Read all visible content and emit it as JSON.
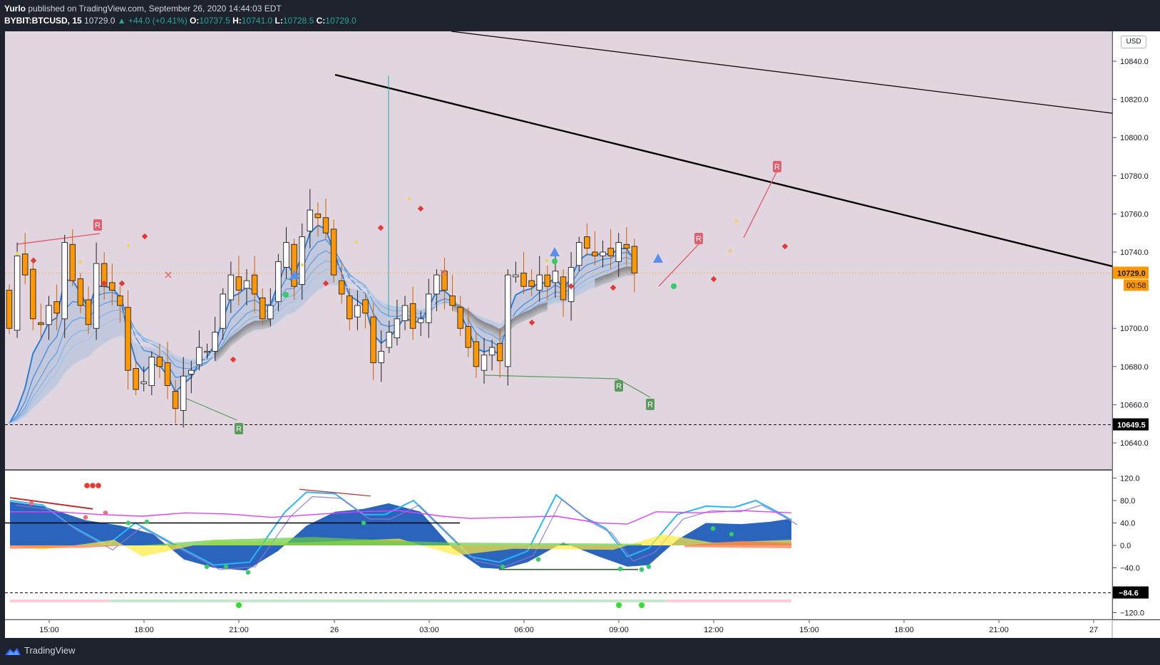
{
  "header": {
    "author": "Yurlo",
    "published_text": "published on TradingView.com, September 26, 2020 14:44:03 EDT",
    "symbol": "BYBIT:BTCUSD, 15",
    "last": "10729.0",
    "change": "▲ +44.0 (+0.41%)",
    "o_label": "O:",
    "o_value": "10737.5",
    "h_label": "H:",
    "h_value": "10741.0",
    "l_label": "L:",
    "l_value": "10728.5",
    "c_label": "C:",
    "c_value": "10729.0"
  },
  "price_axis": {
    "currency": "USD",
    "ticks": [
      "10840.0",
      "10820.0",
      "10800.0",
      "10780.0",
      "10760.0",
      "10740.0",
      "10700.0",
      "10680.0",
      "10660.0",
      "10640.0"
    ],
    "last_price_label": "10729.0",
    "countdown_label": "00:58",
    "level_label": "10649.5"
  },
  "osc_axis": {
    "ticks": [
      "120.0",
      "80.0",
      "40.0",
      "0.0",
      "−40.0",
      "−120.0"
    ],
    "level_label": "−84.6"
  },
  "time_axis": {
    "ticks": [
      "15:00",
      "18:00",
      "21:00",
      "26",
      "03:00",
      "06:00",
      "09:00",
      "12:00",
      "15:00",
      "18:00",
      "21:00",
      "27"
    ]
  },
  "markers": {
    "r": "R"
  },
  "brand": "TradingView",
  "colors": {
    "background": "#1e222d",
    "price_pane": "#e1d6e0",
    "bull_candle": "#ffffff",
    "bear_candle": "#ff9800",
    "ema": "#2e7ed6",
    "trendline": "#000000",
    "last_price": "#ff9800"
  },
  "chart_data": {
    "type": "candlestick",
    "symbol": "BYBIT:BTCUSD",
    "interval": "15",
    "price_range": [
      10630,
      10855
    ],
    "x_ticks": [
      "15:00",
      "18:00",
      "21:00",
      "26",
      "03:00",
      "06:00",
      "09:00",
      "12:00",
      "15:00",
      "18:00",
      "21:00",
      "27"
    ],
    "y_ticks": [
      10840,
      10820,
      10800,
      10780,
      10760,
      10740,
      10700,
      10680,
      10660,
      10640
    ],
    "last_price": 10729.0,
    "horizontal_level": 10649.5,
    "oscillator_range": [
      -130,
      125
    ],
    "oscillator_ticks": [
      120,
      80,
      40,
      0,
      -40,
      -120
    ],
    "oscillator_level": -84.6,
    "close_series": [
      10700,
      10738,
      10728,
      10705,
      10702,
      10712,
      10708,
      10745,
      10725,
      10712,
      10702,
      10734,
      10722,
      10720,
      10712,
      10678,
      10668,
      10672,
      10685,
      10680,
      10670,
      10658,
      10675,
      10678,
      10690,
      10688,
      10698,
      10718,
      10728,
      10720,
      10725,
      10718,
      10705,
      10712,
      10735,
      10745,
      10722,
      10748,
      10762,
      10758,
      10750,
      10728,
      10718,
      10705,
      10712,
      10708,
      10682,
      10688,
      10698,
      10705,
      10712,
      10700,
      10705,
      10718,
      10728,
      10720,
      10712,
      10700,
      10690,
      10680,
      10686,
      10690,
      10683,
      10728,
      10728,
      10722,
      10722,
      10728,
      10722,
      10730,
      10715,
      10732,
      10745,
      10742,
      10738,
      10740,
      10738,
      10745,
      10742,
      10729
    ]
  }
}
